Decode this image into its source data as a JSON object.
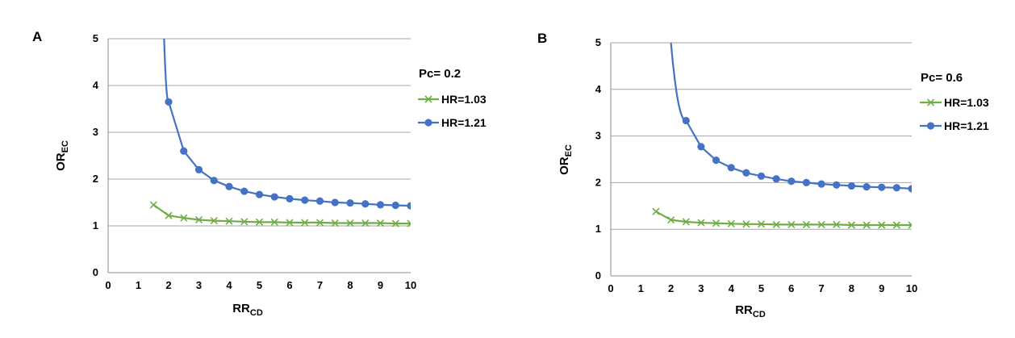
{
  "chart_data": [
    {
      "type": "line",
      "panel_label": "A",
      "xlabel": {
        "main": "RR",
        "sub": "CD"
      },
      "ylabel": {
        "main": "OR",
        "sub": "EC"
      },
      "xlim": [
        0,
        10
      ],
      "ylim": [
        0,
        5
      ],
      "x_ticks": [
        0,
        1,
        2,
        3,
        4,
        5,
        6,
        7,
        8,
        9,
        10
      ],
      "y_ticks": [
        0,
        1,
        2,
        3,
        4,
        5
      ],
      "grid": "horizontal",
      "legend_title": "Pc= 0.2",
      "legend_position": "right",
      "series": [
        {
          "name": "HR=1.03",
          "color": "#70ad47",
          "marker": "x",
          "x": [
            1.5,
            2,
            2.5,
            3,
            3.5,
            4,
            4.5,
            5,
            5.5,
            6,
            6.5,
            7,
            7.5,
            8,
            8.5,
            9,
            9.5,
            10
          ],
          "y": [
            1.45,
            1.22,
            1.17,
            1.13,
            1.11,
            1.1,
            1.09,
            1.08,
            1.08,
            1.07,
            1.07,
            1.07,
            1.06,
            1.06,
            1.06,
            1.06,
            1.05,
            1.05
          ]
        },
        {
          "name": "HR=1.21",
          "color": "#4472c4",
          "marker": "circle",
          "x": [
            2,
            2.5,
            3,
            3.5,
            4,
            4.5,
            5,
            5.5,
            6,
            6.5,
            7,
            7.5,
            8,
            8.5,
            9,
            9.5,
            10
          ],
          "y": [
            3.65,
            2.6,
            2.2,
            1.97,
            1.84,
            1.74,
            1.67,
            1.62,
            1.58,
            1.55,
            1.53,
            1.5,
            1.49,
            1.47,
            1.45,
            1.44,
            1.43
          ],
          "curve_start": [
            1.85,
            5.0
          ]
        }
      ]
    },
    {
      "type": "line",
      "panel_label": "B",
      "xlabel": {
        "main": "RR",
        "sub": "CD"
      },
      "ylabel": {
        "main": "OR",
        "sub": "EC"
      },
      "xlim": [
        0,
        10
      ],
      "ylim": [
        0,
        5
      ],
      "x_ticks": [
        0,
        1,
        2,
        3,
        4,
        5,
        6,
        7,
        8,
        9,
        10
      ],
      "y_ticks": [
        0,
        1,
        2,
        3,
        4,
        5
      ],
      "grid": "horizontal",
      "legend_title": "Pc= 0.6",
      "legend_position": "right",
      "series": [
        {
          "name": "HR=1.03",
          "color": "#70ad47",
          "marker": "x",
          "x": [
            1.5,
            2,
            2.5,
            3,
            3.5,
            4,
            4.5,
            5,
            5.5,
            6,
            6.5,
            7,
            7.5,
            8,
            8.5,
            9,
            9.5,
            10
          ],
          "y": [
            1.38,
            1.2,
            1.16,
            1.14,
            1.13,
            1.12,
            1.11,
            1.11,
            1.1,
            1.1,
            1.1,
            1.1,
            1.1,
            1.09,
            1.09,
            1.09,
            1.09,
            1.09
          ]
        },
        {
          "name": "HR=1.21",
          "color": "#4472c4",
          "marker": "circle",
          "x": [
            2.5,
            3,
            3.5,
            4,
            4.5,
            5,
            5.5,
            6,
            6.5,
            7,
            7.5,
            8,
            8.5,
            9,
            9.5,
            10
          ],
          "y": [
            3.33,
            2.77,
            2.48,
            2.32,
            2.21,
            2.14,
            2.08,
            2.03,
            2.0,
            1.97,
            1.95,
            1.93,
            1.91,
            1.9,
            1.89,
            1.87
          ],
          "curve_start": [
            2.0,
            5.0
          ]
        }
      ]
    }
  ]
}
